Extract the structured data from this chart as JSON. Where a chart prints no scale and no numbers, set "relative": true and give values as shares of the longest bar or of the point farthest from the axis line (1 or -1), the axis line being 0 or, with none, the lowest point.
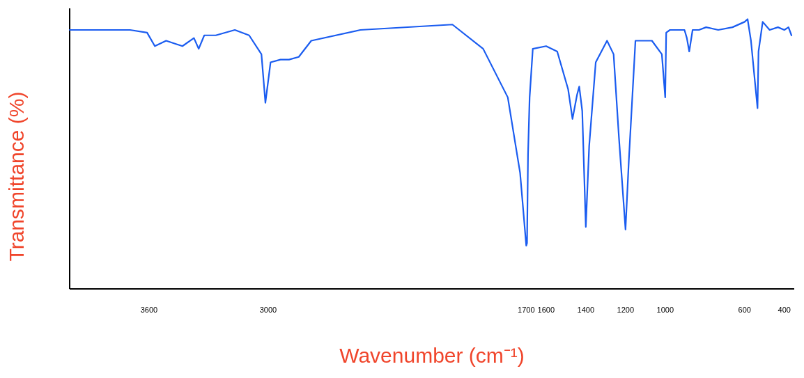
{
  "chart_data": {
    "type": "line",
    "xlabel": "Wavenumber (cm⁻¹)",
    "ylabel": "Transmittance (%)",
    "relative": true,
    "xlim": [
      4000,
      350
    ],
    "xticks": [
      3600,
      3000,
      1700,
      1600,
      1400,
      1200,
      1000,
      600,
      400
    ],
    "grid": false,
    "line_style": "solid",
    "x": [
      4000,
      3936,
      3696,
      3610,
      3571,
      3514,
      3432,
      3374,
      3350,
      3322,
      3264,
      3168,
      3096,
      3034,
      3014,
      2988,
      2938,
      2895,
      2846,
      2783,
      2536,
      2072,
      1917,
      1793,
      1731,
      1700,
      1696,
      1691,
      1683,
      1667,
      1600,
      1544,
      1489,
      1467,
      1444,
      1433,
      1418,
      1400,
      1383,
      1350,
      1293,
      1260,
      1233,
      1200,
      1183,
      1150,
      1067,
      1017,
      1000,
      995,
      976,
      903,
      891,
      879,
      862,
      830,
      794,
      733,
      661,
      600,
      585,
      568,
      547,
      535,
      530,
      509,
      474,
      432,
      400,
      379,
      364
    ],
    "series": [
      {
        "color": "#1a5cf0",
        "values": [
          0.96,
          0.96,
          0.96,
          0.95,
          0.9,
          0.92,
          0.9,
          0.93,
          0.89,
          0.94,
          0.94,
          0.96,
          0.94,
          0.87,
          0.69,
          0.84,
          0.85,
          0.85,
          0.86,
          0.92,
          0.96,
          0.98,
          0.89,
          0.71,
          0.43,
          0.16,
          0.17,
          0.5,
          0.71,
          0.89,
          0.9,
          0.88,
          0.74,
          0.63,
          0.72,
          0.75,
          0.66,
          0.23,
          0.53,
          0.84,
          0.92,
          0.87,
          0.56,
          0.22,
          0.48,
          0.92,
          0.92,
          0.87,
          0.71,
          0.95,
          0.96,
          0.96,
          0.93,
          0.88,
          0.96,
          0.96,
          0.97,
          0.96,
          0.97,
          0.99,
          1.0,
          0.92,
          0.76,
          0.67,
          0.88,
          0.99,
          0.96,
          0.97,
          0.96,
          0.97,
          0.94
        ]
      }
    ]
  }
}
